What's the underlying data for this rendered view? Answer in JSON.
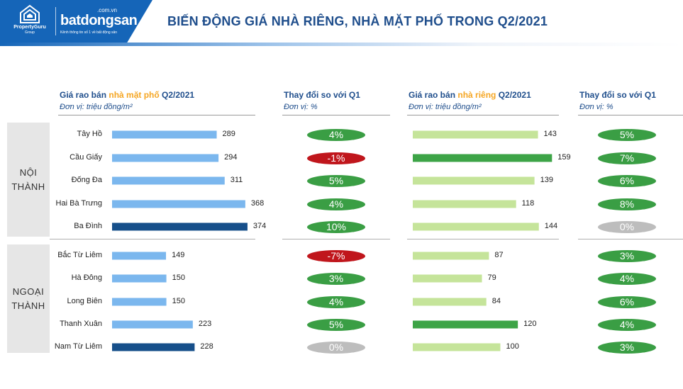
{
  "title": "BIẾN ĐỘNG GIÁ NHÀ RIÊNG, NHÀ MẶT PHỐ TRONG Q2/2021",
  "logos": {
    "propertyguru_name": "PropertyGuru",
    "propertyguru_group": "Group",
    "batdongsan_domain": ".com.vn",
    "batdongsan_name": "batdongsan",
    "batdongsan_tagline": "Kênh thông tin số 1 về bất động sản"
  },
  "columns": {
    "mat_pho": {
      "prefix": "Giá rao bán ",
      "highlight": "nhà mặt phố",
      "suffix": " Q2/2021",
      "unit": "Đơn vị: triệu đồng/m²"
    },
    "mat_pho_change": {
      "title": "Thay đổi so với Q1",
      "unit": "Đơn vị: %"
    },
    "nha_rieng": {
      "prefix": "Giá rao bán ",
      "highlight": "nhà riêng",
      "suffix": " Q2/2021",
      "unit": "Đơn vị: triệu đồng/m²"
    },
    "nha_rieng_change": {
      "title": "Thay đổi so với Q1",
      "unit": "Đơn vị: %"
    }
  },
  "regions": [
    "NỘI THÀNH",
    "NGOẠI THÀNH"
  ],
  "colors": {
    "bar_light_blue": "#7bb7ee",
    "bar_dark_blue": "#164f8a",
    "bar_light_green": "#c5e49a",
    "bar_dark_green": "#3da447",
    "positive": "#3a9e44",
    "negative": "#c0161c",
    "neutral": "#bdbdbd",
    "title": "#1f4e8c",
    "highlight": "#f5a623"
  },
  "chart_data": {
    "type": "bar",
    "orientation": "horizontal",
    "categories": [
      "Tây Hồ",
      "Cầu Giấy",
      "Đống Đa",
      "Hai Bà Trưng",
      "Ba Đình",
      "Bắc Từ Liêm",
      "Hà Đông",
      "Long Biên",
      "Thanh Xuân",
      "Nam Từ Liêm"
    ],
    "category_region": [
      "NỘI THÀNH",
      "NỘI THÀNH",
      "NỘI THÀNH",
      "NỘI THÀNH",
      "NỘI THÀNH",
      "NGOẠI THÀNH",
      "NGOẠI THÀNH",
      "NGOẠI THÀNH",
      "NGOẠI THÀNH",
      "NGOẠI THÀNH"
    ],
    "series": [
      {
        "values": [
          289,
          294,
          311,
          368,
          374,
          149,
          150,
          150,
          223,
          228
        ],
        "highlight_index": [
          4,
          9
        ],
        "change": [
          "4%",
          "-1%",
          "5%",
          "4%",
          "10%",
          "-7%",
          "3%",
          "4%",
          "5%",
          "0%"
        ]
      },
      {
        "values": [
          143,
          159,
          139,
          118,
          144,
          87,
          79,
          84,
          120,
          100
        ],
        "highlight_index": [
          1,
          8
        ],
        "change": [
          "5%",
          "7%",
          "6%",
          "8%",
          "0%",
          "3%",
          "4%",
          "6%",
          "4%",
          "3%"
        ]
      }
    ],
    "xlim": [
      0,
      380
    ],
    "xlim_nha_rieng": [
      0,
      162
    ]
  }
}
